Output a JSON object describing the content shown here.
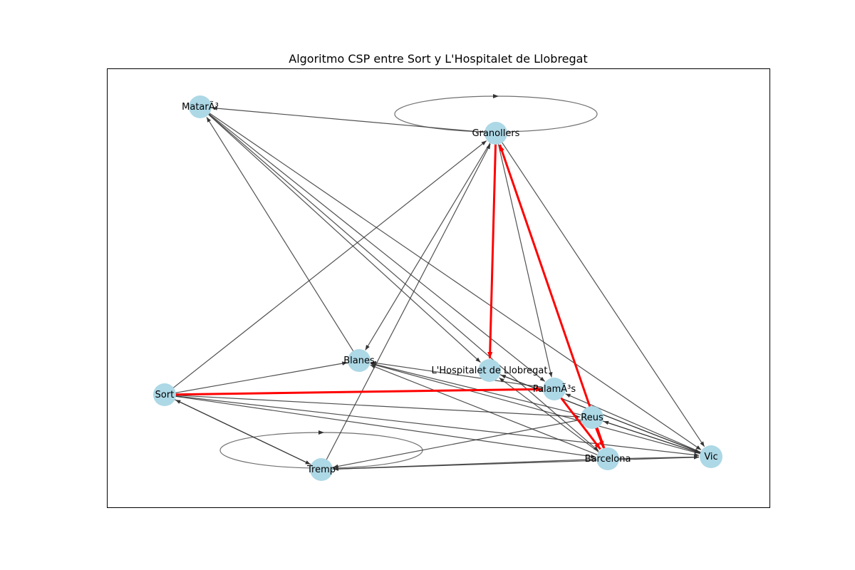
{
  "title": "Algoritmo CSP entre Sort y L'Hospitalet de Llobregat",
  "colors": {
    "node_fill": "#add8e6",
    "edge": "#333333",
    "path_edge": "#ff0000",
    "frame": "#000000"
  },
  "nodes": [
    {
      "id": "mataro",
      "label": "MatarÃ³"
    },
    {
      "id": "granollers",
      "label": "Granollers"
    },
    {
      "id": "blanes",
      "label": "Blanes"
    },
    {
      "id": "hospitalet",
      "label": "L'Hospitalet de Llobregat"
    },
    {
      "id": "palamos",
      "label": "PalamÃ³s"
    },
    {
      "id": "sort",
      "label": "Sort"
    },
    {
      "id": "reus",
      "label": "Reus"
    },
    {
      "id": "vic",
      "label": "Vic"
    },
    {
      "id": "barcelona",
      "label": "Barcelona"
    },
    {
      "id": "tremp",
      "label": "Tremp"
    }
  ],
  "edges": [
    {
      "from": "granollers",
      "to": "mataro"
    },
    {
      "from": "granollers",
      "to": "granollers",
      "self_loop": true
    },
    {
      "from": "mataro",
      "to": "hospitalet"
    },
    {
      "from": "mataro",
      "to": "palamos"
    },
    {
      "from": "mataro",
      "to": "vic"
    },
    {
      "from": "mataro",
      "to": "barcelona"
    },
    {
      "from": "blanes",
      "to": "mataro"
    },
    {
      "from": "granollers",
      "to": "blanes"
    },
    {
      "from": "granollers",
      "to": "palamos"
    },
    {
      "from": "granollers",
      "to": "vic"
    },
    {
      "from": "sort",
      "to": "granollers"
    },
    {
      "from": "tremp",
      "to": "granollers"
    },
    {
      "from": "sort",
      "to": "blanes"
    },
    {
      "from": "sort",
      "to": "reus"
    },
    {
      "from": "sort",
      "to": "vic"
    },
    {
      "from": "sort",
      "to": "barcelona"
    },
    {
      "from": "sort",
      "to": "tremp"
    },
    {
      "from": "tremp",
      "to": "sort"
    },
    {
      "from": "tremp",
      "to": "tremp",
      "self_loop": true
    },
    {
      "from": "tremp",
      "to": "vic"
    },
    {
      "from": "reus",
      "to": "tremp"
    },
    {
      "from": "barcelona",
      "to": "tremp"
    },
    {
      "from": "palamos",
      "to": "blanes"
    },
    {
      "from": "reus",
      "to": "blanes"
    },
    {
      "from": "vic",
      "to": "blanes"
    },
    {
      "from": "barcelona",
      "to": "blanes"
    },
    {
      "from": "barcelona",
      "to": "hospitalet"
    },
    {
      "from": "vic",
      "to": "hospitalet"
    },
    {
      "from": "hospitalet",
      "to": "vic"
    },
    {
      "from": "vic",
      "to": "palamos"
    },
    {
      "from": "vic",
      "to": "reus"
    },
    {
      "from": "reus",
      "to": "vic"
    },
    {
      "from": "barcelona",
      "to": "vic"
    },
    {
      "from": "sort",
      "to": "palamos",
      "path": true
    },
    {
      "from": "palamos",
      "to": "barcelona",
      "path": true
    },
    {
      "from": "barcelona",
      "to": "granollers",
      "path": true
    },
    {
      "from": "granollers",
      "to": "hospitalet",
      "path": true
    },
    {
      "from": "reus",
      "to": "barcelona",
      "path": true
    }
  ]
}
